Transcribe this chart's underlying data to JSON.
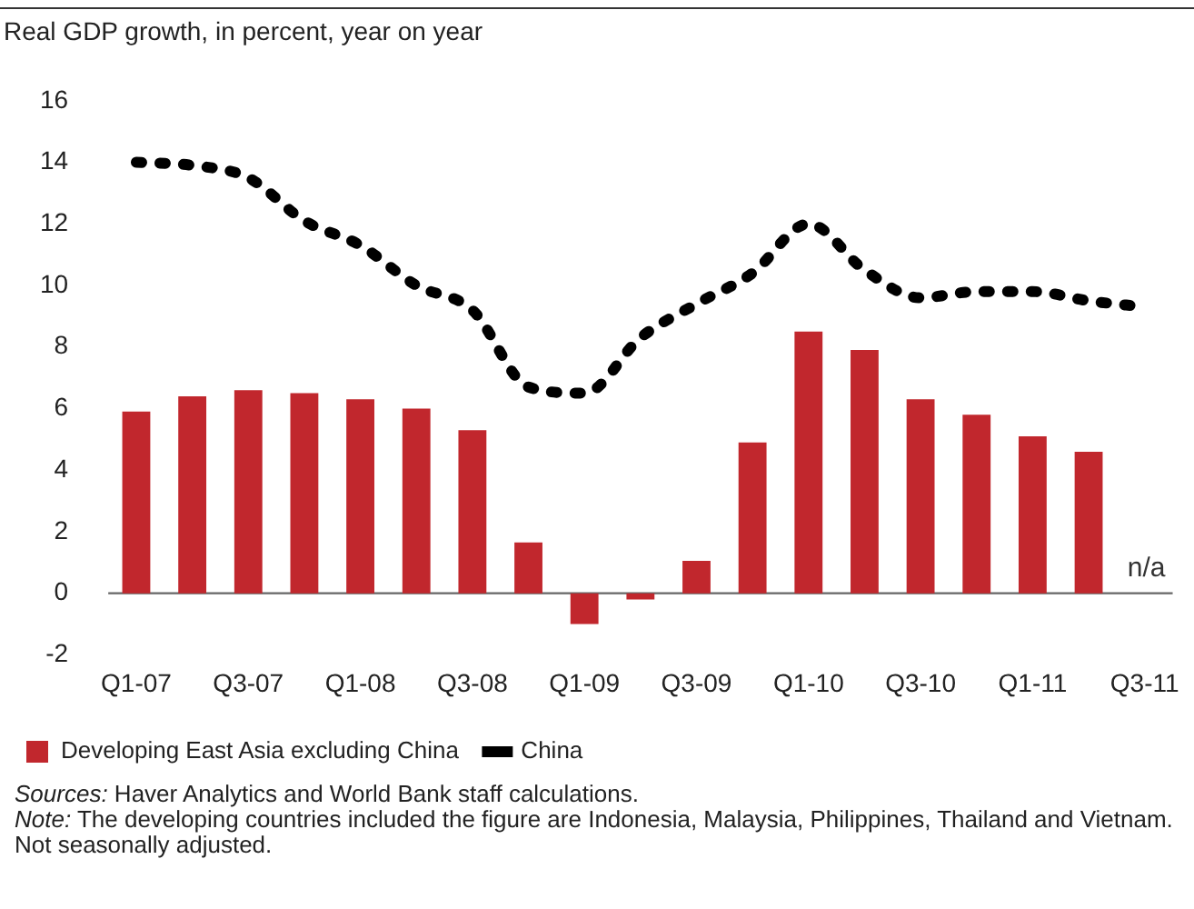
{
  "chart_data": {
    "type": "bar",
    "title": "Real GDP growth, in percent, year on year",
    "categories": [
      "Q1-07",
      null,
      "Q3-07",
      null,
      "Q1-08",
      null,
      "Q3-08",
      null,
      "Q1-09",
      null,
      "Q3-09",
      null,
      "Q1-10",
      null,
      "Q3-10",
      null,
      "Q1-11",
      null,
      "Q3-11"
    ],
    "series": [
      {
        "name": "Developing East Asia excluding China",
        "color": "#c1272d",
        "values": [
          5.9,
          6.4,
          6.6,
          6.5,
          6.3,
          6.0,
          5.3,
          1.65,
          -1.0,
          -0.2,
          1.05,
          4.9,
          8.5,
          7.9,
          6.3,
          5.8,
          5.1,
          4.6,
          null
        ]
      },
      {
        "name": "China",
        "type": "line",
        "color": "#000000",
        "line_style": "dotted",
        "values": [
          14.0,
          13.9,
          13.5,
          12.1,
          11.3,
          10.0,
          9.2,
          6.7,
          6.5,
          8.3,
          9.4,
          10.4,
          12.0,
          10.5,
          9.6,
          9.8,
          9.8,
          9.5,
          9.3
        ]
      }
    ],
    "ylim": [
      -2,
      16
    ],
    "yticks": [
      -2,
      0,
      2,
      4,
      6,
      8,
      10,
      12,
      14,
      16
    ],
    "ref_lines": [
      {
        "axis": "y",
        "value": 0,
        "color": "#666666"
      }
    ],
    "legend": "bottom",
    "annotations": [
      "n/a",
      "Sources: Haver Analytics and World Bank staff calculations.",
      "Note: The developing countries included the figure are Indonesia, Malaysia, Philippines, Thailand and Vietnam. Not seasonally adjusted."
    ]
  }
}
